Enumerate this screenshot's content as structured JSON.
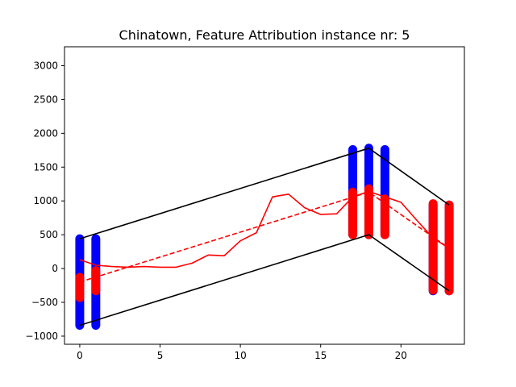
{
  "chart_data": {
    "type": "line",
    "title": "Chinatown, Feature Attribution instance nr: 5",
    "xlabel": "",
    "ylabel": "",
    "xlim": [
      -0.95,
      23.95
    ],
    "ylim": [
      -1120,
      3280
    ],
    "x_ticks": [
      0,
      5,
      10,
      15,
      20
    ],
    "y_ticks": [
      -1000,
      -500,
      0,
      500,
      1000,
      1500,
      2000,
      2500,
      3000
    ],
    "grid": false,
    "series": [
      {
        "style": "solid",
        "color": "#ff0000",
        "x": [
          0,
          1,
          2,
          3,
          4,
          5,
          6,
          7,
          8,
          9,
          10,
          11,
          12,
          13,
          14,
          15,
          16,
          17,
          18,
          19,
          20,
          21,
          22,
          23
        ],
        "y": [
          130,
          50,
          30,
          20,
          30,
          20,
          20,
          80,
          200,
          190,
          410,
          530,
          1060,
          1100,
          900,
          800,
          810,
          1060,
          1140,
          1060,
          980,
          710,
          450,
          300
        ]
      },
      {
        "style": "dashed",
        "color": "#ff0000",
        "x": [
          0,
          18,
          23
        ],
        "y": [
          -200,
          1130,
          300
        ]
      },
      {
        "style": "solid",
        "color": "#000000",
        "x": [
          0,
          18,
          23
        ],
        "y": [
          440,
          1780,
          940
        ]
      },
      {
        "style": "solid",
        "color": "#000000",
        "x": [
          0,
          18,
          23
        ],
        "y": [
          -840,
          500,
          -330
        ]
      }
    ],
    "columns": [
      {
        "x": 0,
        "blue": [
          -840,
          440
        ],
        "red": [
          -430,
          -130
        ]
      },
      {
        "x": 1,
        "blue": [
          -840,
          440
        ],
        "red": [
          -330,
          -30
        ]
      },
      {
        "x": 17,
        "blue": [
          500,
          1760
        ],
        "red": [
          500,
          1130
        ]
      },
      {
        "x": 18,
        "blue": [
          500,
          1780
        ],
        "red": [
          500,
          1180
        ]
      },
      {
        "x": 19,
        "blue": [
          500,
          1760
        ],
        "red": [
          500,
          1030
        ]
      },
      {
        "x": 22,
        "blue": [
          -330,
          940
        ],
        "red": [
          -320,
          960
        ]
      },
      {
        "x": 23,
        "blue": [
          -330,
          940
        ],
        "red": [
          -330,
          940
        ]
      }
    ],
    "colors": {
      "blue": "#0000ff",
      "red": "#ff0000",
      "black": "#000000"
    }
  }
}
